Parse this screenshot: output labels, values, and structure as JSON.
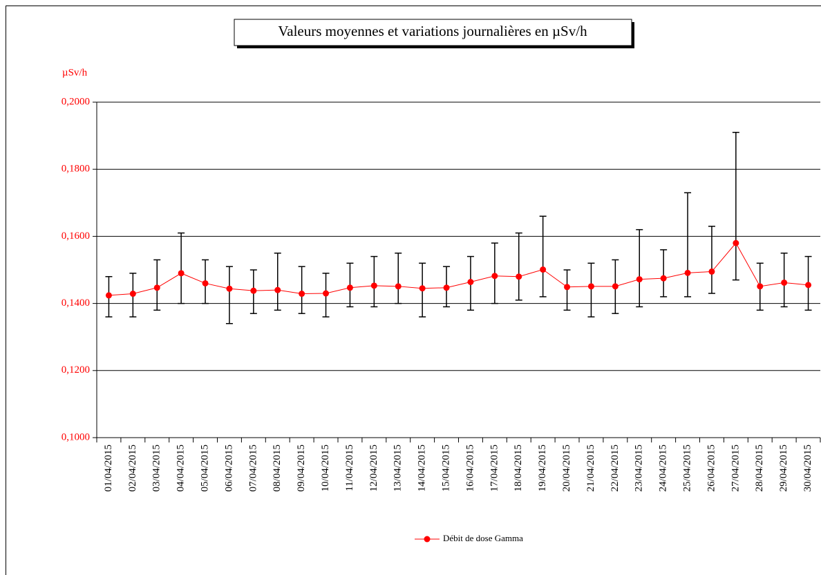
{
  "chart_data": {
    "type": "line",
    "title": "Valeurs moyennes et variations journalières en µSv/h",
    "y_label": "µSv/h",
    "categories": [
      "01/04/2015",
      "02/04/2015",
      "03/04/2015",
      "04/04/2015",
      "05/04/2015",
      "06/04/2015",
      "07/04/2015",
      "08/04/2015",
      "09/04/2015",
      "10/04/2015",
      "11/04/2015",
      "12/04/2015",
      "13/04/2015",
      "14/04/2015",
      "15/04/2015",
      "16/04/2015",
      "17/04/2015",
      "18/04/2015",
      "19/04/2015",
      "20/04/2015",
      "21/04/2015",
      "22/04/2015",
      "23/04/2015",
      "24/04/2015",
      "25/04/2015",
      "26/04/2015",
      "27/04/2015",
      "28/04/2015",
      "29/04/2015",
      "30/04/2015"
    ],
    "series": [
      {
        "name": "Débit de dose Gamma",
        "color": "#ff0000",
        "values": [
          0.1424,
          0.1429,
          0.1447,
          0.149,
          0.146,
          0.1444,
          0.1438,
          0.144,
          0.1429,
          0.143,
          0.1447,
          0.1453,
          0.1451,
          0.1445,
          0.1447,
          0.1464,
          0.1482,
          0.148,
          0.1501,
          0.1449,
          0.1451,
          0.1451,
          0.1472,
          0.1475,
          0.1491,
          0.1495,
          0.158,
          0.1451,
          0.1462,
          0.1455
        ],
        "low": [
          0.136,
          0.136,
          0.138,
          0.14,
          0.14,
          0.134,
          0.137,
          0.138,
          0.137,
          0.136,
          0.139,
          0.139,
          0.14,
          0.136,
          0.139,
          0.138,
          0.14,
          0.141,
          0.142,
          0.138,
          0.136,
          0.137,
          0.139,
          0.142,
          0.142,
          0.143,
          0.147,
          0.138,
          0.139,
          0.138
        ],
        "high": [
          0.148,
          0.149,
          0.153,
          0.161,
          0.153,
          0.151,
          0.15,
          0.155,
          0.151,
          0.149,
          0.152,
          0.154,
          0.155,
          0.152,
          0.151,
          0.154,
          0.158,
          0.161,
          0.166,
          0.15,
          0.152,
          0.153,
          0.162,
          0.156,
          0.173,
          0.163,
          0.191,
          0.152,
          0.155,
          0.154
        ]
      }
    ],
    "ylim": [
      0.1,
      0.2
    ],
    "yticks": [
      {
        "value": 0.1,
        "label": "0,1000"
      },
      {
        "value": 0.12,
        "label": "0,1200"
      },
      {
        "value": 0.14,
        "label": "0,1400"
      },
      {
        "value": 0.16,
        "label": "0,1600"
      },
      {
        "value": 0.18,
        "label": "0,1800"
      },
      {
        "value": 0.2,
        "label": "0,2000"
      }
    ],
    "grid": true,
    "legend": "bottom",
    "error_bar_color": "#000000",
    "tick_label_color": "#ff0000"
  }
}
